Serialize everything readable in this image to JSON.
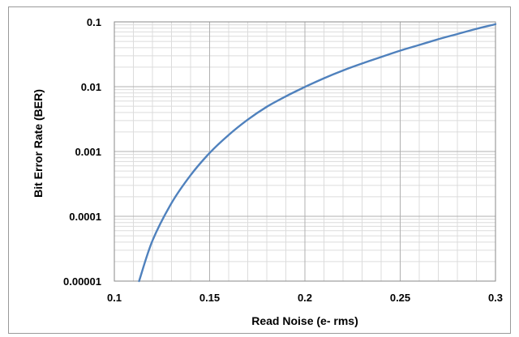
{
  "chart_data": {
    "type": "line",
    "title": "",
    "xlabel": "Read Noise (e- rms)",
    "ylabel": "Bit Error Rate (BER)",
    "x_scale": "linear",
    "y_scale": "log",
    "xlim": [
      0.1,
      0.3
    ],
    "ylim": [
      1e-05,
      0.1
    ],
    "x_ticks": [
      "0.1",
      "0.15",
      "0.2",
      "0.25",
      "0.3"
    ],
    "y_ticks": [
      "0.00001",
      "0.0001",
      "0.001",
      "0.01",
      "0.1"
    ],
    "grid": true,
    "legend": "none",
    "series": [
      {
        "color": "#4f81bd",
        "x": [
          0.113,
          0.12,
          0.13,
          0.14,
          0.15,
          0.16,
          0.17,
          0.18,
          0.19,
          0.2,
          0.21,
          0.22,
          0.23,
          0.24,
          0.25,
          0.26,
          0.27,
          0.28,
          0.29,
          0.3
        ],
        "y": [
          1e-05,
          4.2e-05,
          0.00016,
          0.00043,
          0.00095,
          0.0018,
          0.0031,
          0.0049,
          0.0071,
          0.0099,
          0.0135,
          0.0178,
          0.0228,
          0.0287,
          0.036,
          0.044,
          0.054,
          0.065,
          0.078,
          0.092
        ]
      }
    ]
  }
}
